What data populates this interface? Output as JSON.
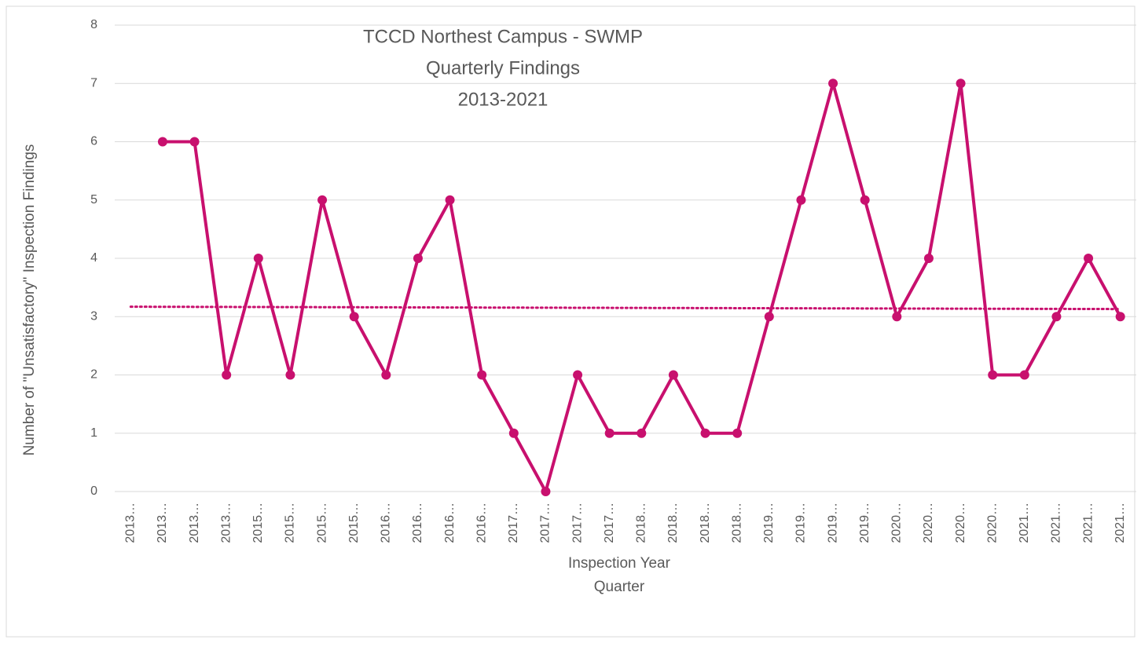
{
  "chart_data": {
    "type": "line",
    "title": [
      "TCCD Northest Campus - SWMP",
      "Quarterly Findings",
      "2013-2021"
    ],
    "x_label": [
      "Inspection Year",
      "Quarter"
    ],
    "y_label": "Number of \"Unsatisfactory\" Inspection Findings",
    "categories": [
      "2013…",
      "2013…",
      "2013…",
      "2013…",
      "2015…",
      "2015…",
      "2015…",
      "2015…",
      "2016…",
      "2016…",
      "2016…",
      "2016…",
      "2017…",
      "2017…",
      "2017…",
      "2017…",
      "2018…",
      "2018…",
      "2018…",
      "2018…",
      "2019…",
      "2019…",
      "2019…",
      "2019…",
      "2020…",
      "2020…",
      "2020…",
      "2020…",
      "2021…",
      "2021…",
      "2021…",
      "2021…"
    ],
    "series": [
      {
        "color": "#c8106e",
        "values": [
          null,
          6,
          6,
          2,
          4,
          2,
          5,
          3,
          2,
          4,
          5,
          2,
          1,
          0,
          2,
          1,
          1,
          2,
          1,
          1,
          3,
          5,
          7,
          5,
          3,
          4,
          7,
          2,
          2,
          3,
          4,
          3
        ]
      }
    ],
    "trendline": {
      "start": 3.17,
      "end": 3.13
    },
    "ylim": [
      0,
      8
    ],
    "yticks": [
      0,
      1,
      2,
      3,
      4,
      5,
      6,
      7,
      8
    ],
    "grid": true
  }
}
